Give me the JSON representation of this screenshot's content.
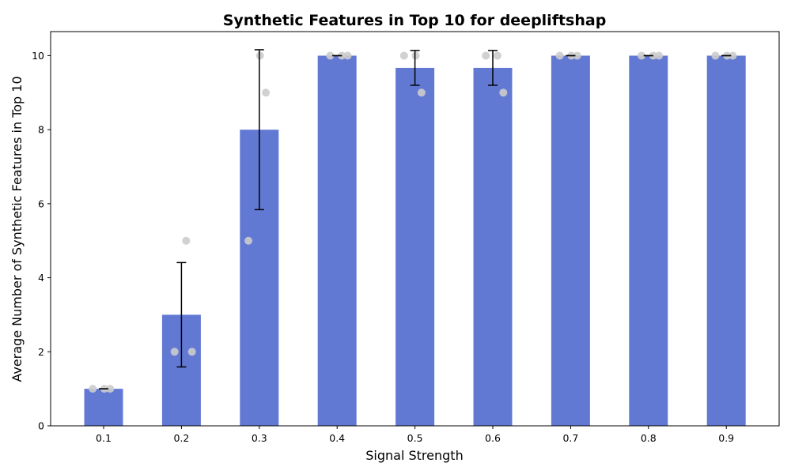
{
  "chart_data": {
    "type": "bar",
    "title": "Synthetic Features in Top 10 for deepliftshap",
    "xlabel": "Signal Strength",
    "ylabel": "Average Number of Synthetic Features in Top 10",
    "categories": [
      "0.1",
      "0.2",
      "0.3",
      "0.4",
      "0.5",
      "0.6",
      "0.7",
      "0.8",
      "0.9"
    ],
    "values": [
      1,
      3,
      8,
      10,
      9.67,
      9.67,
      10,
      10,
      10
    ],
    "error": [
      0,
      1.41,
      2.16,
      0,
      0.47,
      0.47,
      0,
      0,
      0
    ],
    "points": [
      [
        1,
        1,
        1
      ],
      [
        2,
        5,
        2
      ],
      [
        5,
        10,
        9
      ],
      [
        10,
        10,
        10
      ],
      [
        10,
        10,
        9
      ],
      [
        10,
        10,
        9
      ],
      [
        10,
        10,
        10
      ],
      [
        10,
        10,
        10
      ],
      [
        10,
        10,
        10
      ]
    ],
    "yticks": [
      0,
      2,
      4,
      6,
      8,
      10
    ],
    "ylim": [
      0,
      10.65
    ],
    "bar_color": "#6279d4",
    "point_color": "#cccccc",
    "grid": false
  }
}
